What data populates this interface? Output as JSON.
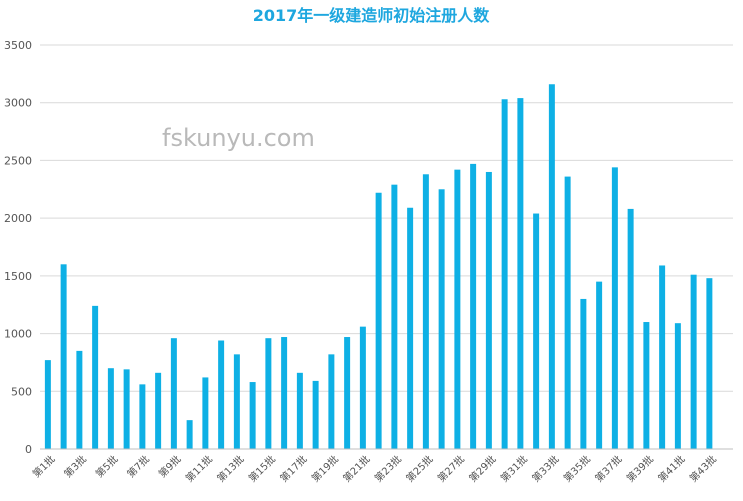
{
  "watermark": "fskunyu.com",
  "chart_data": {
    "type": "bar",
    "title": "2017年一级建造师初始注册人数",
    "xlabel": "",
    "ylabel": "",
    "ylim": [
      0,
      3500
    ],
    "yticks": [
      0,
      500,
      1000,
      1500,
      2000,
      2500,
      3000,
      3500
    ],
    "grid": true,
    "legend": "none",
    "bar_color": "#0eb0e5",
    "categories": [
      "第1批",
      "第2批",
      "第3批",
      "第4批",
      "第5批",
      "第6批",
      "第7批",
      "第8批",
      "第9批",
      "第10批",
      "第11批",
      "第12批",
      "第13批",
      "第14批",
      "第15批",
      "第16批",
      "第17批",
      "第18批",
      "第19批",
      "第20批",
      "第21批",
      "第22批",
      "第23批",
      "第24批",
      "第25批",
      "第26批",
      "第27批",
      "第28批",
      "第29批",
      "第30批",
      "第31批",
      "第32批",
      "第33批",
      "第34批",
      "第35批",
      "第36批",
      "第37批",
      "第38批",
      "第39批",
      "第40批",
      "第41批",
      "第42批",
      "第43批",
      "第44批"
    ],
    "x_tick_labels_shown": [
      "第1批",
      "第3批",
      "第5批",
      "第7批",
      "第9批",
      "第11批",
      "第13批",
      "第15批",
      "第17批",
      "第19批",
      "第21批",
      "第23批",
      "第25批",
      "第27批",
      "第29批",
      "第31批",
      "第33批",
      "第35批",
      "第37批",
      "第39批",
      "第41批",
      "第43批"
    ],
    "values": [
      770,
      1600,
      850,
      1240,
      700,
      690,
      560,
      660,
      960,
      250,
      620,
      940,
      820,
      580,
      960,
      970,
      660,
      590,
      820,
      970,
      1060,
      2220,
      2290,
      2090,
      2380,
      2250,
      2420,
      2470,
      2400,
      3030,
      3040,
      2040,
      3160,
      2360,
      1300,
      1450,
      2440,
      2080,
      1100,
      1590,
      1090,
      1510,
      1480,
      0
    ]
  }
}
